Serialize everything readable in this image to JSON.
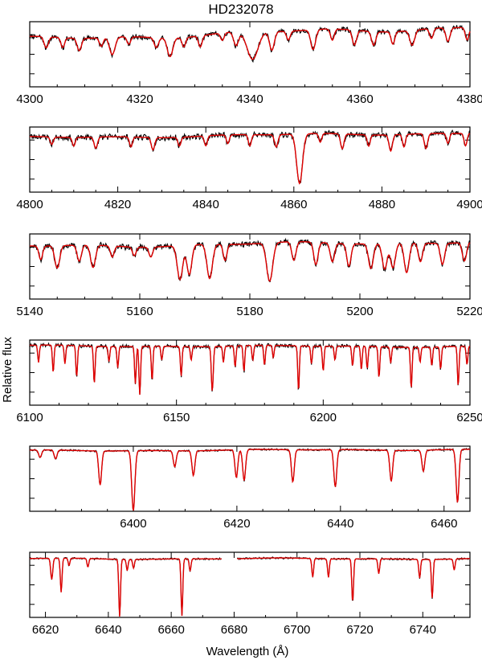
{
  "chart_data": {
    "type": "line",
    "title": "HD232078",
    "xlabel": "Wavelength (Å)",
    "ylabel": "Relative flux",
    "grid": false,
    "series_names_shown": false,
    "colors": {
      "observed": "#000000",
      "model": "#e00000"
    },
    "panels": [
      {
        "xlim": [
          4300,
          4380
        ],
        "ticks": [
          4300,
          4320,
          4340,
          4360,
          4380
        ],
        "noise": 0.035,
        "wiggle": 0.03,
        "trend": [
          0.74,
          0.94
        ],
        "seed": 11,
        "lines": [
          [
            4303,
            0.18,
            0.7
          ],
          [
            4306,
            0.16,
            0.6
          ],
          [
            4309,
            0.2,
            0.7
          ],
          [
            4313,
            0.14,
            0.6
          ],
          [
            4315,
            0.28,
            0.9
          ],
          [
            4318,
            0.12,
            0.6
          ],
          [
            4323,
            0.16,
            0.7
          ],
          [
            4325.5,
            0.3,
            0.9
          ],
          [
            4328,
            0.15,
            0.6
          ],
          [
            4331,
            0.18,
            0.6
          ],
          [
            4335,
            0.12,
            0.6
          ],
          [
            4337.5,
            0.22,
            0.8
          ],
          [
            4340.5,
            0.45,
            1.8
          ],
          [
            4344,
            0.3,
            0.8
          ],
          [
            4347,
            0.14,
            0.6
          ],
          [
            4351.5,
            0.32,
            0.8
          ],
          [
            4355,
            0.18,
            0.6
          ],
          [
            4359,
            0.24,
            0.7
          ],
          [
            4362.5,
            0.22,
            0.7
          ],
          [
            4366,
            0.2,
            0.6
          ],
          [
            4369.5,
            0.24,
            0.8
          ],
          [
            4373,
            0.16,
            0.6
          ],
          [
            4376,
            0.22,
            0.7
          ],
          [
            4379.5,
            0.2,
            0.6
          ]
        ]
      },
      {
        "xlim": [
          4800,
          4900
        ],
        "ticks": [
          4800,
          4820,
          4840,
          4860,
          4880,
          4900
        ],
        "noise": 0.04,
        "wiggle": 0.015,
        "trend": [
          0.85,
          0.93
        ],
        "seed": 23,
        "lines": [
          [
            4805,
            0.12,
            0.6
          ],
          [
            4810,
            0.14,
            0.6
          ],
          [
            4815,
            0.18,
            0.7
          ],
          [
            4823,
            0.16,
            0.6
          ],
          [
            4828,
            0.2,
            0.7
          ],
          [
            4834,
            0.14,
            0.6
          ],
          [
            4840,
            0.16,
            0.6
          ],
          [
            4845,
            0.14,
            0.6
          ],
          [
            4850,
            0.18,
            0.6
          ],
          [
            4856,
            0.2,
            0.7
          ],
          [
            4861.3,
            0.8,
            1.2
          ],
          [
            4866,
            0.14,
            0.6
          ],
          [
            4871,
            0.24,
            0.7
          ],
          [
            4877,
            0.18,
            0.6
          ],
          [
            4882,
            0.26,
            0.7
          ],
          [
            4885,
            0.2,
            0.6
          ],
          [
            4890,
            0.24,
            0.7
          ],
          [
            4895,
            0.16,
            0.6
          ],
          [
            4899,
            0.2,
            0.6
          ]
        ]
      },
      {
        "xlim": [
          5140,
          5220
        ],
        "ticks": [
          5140,
          5160,
          5180,
          5200,
          5220
        ],
        "noise": 0.04,
        "wiggle": 0.02,
        "trend": [
          0.82,
          0.9
        ],
        "seed": 37,
        "lines": [
          [
            5142,
            0.22,
            0.6
          ],
          [
            5145,
            0.36,
            0.8
          ],
          [
            5149,
            0.26,
            0.7
          ],
          [
            5151.5,
            0.36,
            0.8
          ],
          [
            5155,
            0.18,
            0.6
          ],
          [
            5159,
            0.14,
            0.6
          ],
          [
            5162,
            0.16,
            0.6
          ],
          [
            5167.3,
            0.55,
            0.9
          ],
          [
            5169,
            0.48,
            0.8
          ],
          [
            5172.7,
            0.55,
            0.9
          ],
          [
            5175.5,
            0.26,
            0.6
          ],
          [
            5183.6,
            0.62,
            1.0
          ],
          [
            5188,
            0.3,
            0.7
          ],
          [
            5192,
            0.36,
            0.7
          ],
          [
            5195,
            0.3,
            0.7
          ],
          [
            5198,
            0.36,
            0.7
          ],
          [
            5202,
            0.4,
            0.8
          ],
          [
            5204.5,
            0.42,
            0.8
          ],
          [
            5206,
            0.4,
            0.8
          ],
          [
            5208.5,
            0.48,
            0.8
          ],
          [
            5211,
            0.3,
            0.7
          ],
          [
            5215,
            0.34,
            0.7
          ],
          [
            5219,
            0.3,
            0.7
          ]
        ]
      },
      {
        "xlim": [
          6100,
          6250
        ],
        "ticks": [
          6100,
          6150,
          6200,
          6250
        ],
        "noise": 0.025,
        "wiggle": 0.01,
        "trend": [
          0.93,
          0.92
        ],
        "seed": 41,
        "lines": [
          [
            6103,
            0.28,
            0.5
          ],
          [
            6108,
            0.44,
            0.5
          ],
          [
            6112,
            0.3,
            0.5
          ],
          [
            6116,
            0.5,
            0.5
          ],
          [
            6122,
            0.6,
            0.5
          ],
          [
            6127,
            0.24,
            0.5
          ],
          [
            6130,
            0.34,
            0.5
          ],
          [
            6136,
            0.6,
            0.5
          ],
          [
            6137.5,
            0.78,
            0.5
          ],
          [
            6141.7,
            0.55,
            0.5
          ],
          [
            6145,
            0.22,
            0.5
          ],
          [
            6151.6,
            0.48,
            0.5
          ],
          [
            6155,
            0.22,
            0.5
          ],
          [
            6162.2,
            0.72,
            0.6
          ],
          [
            6166,
            0.26,
            0.5
          ],
          [
            6170,
            0.34,
            0.5
          ],
          [
            6173,
            0.42,
            0.5
          ],
          [
            6176,
            0.24,
            0.5
          ],
          [
            6180,
            0.32,
            0.5
          ],
          [
            6183,
            0.2,
            0.5
          ],
          [
            6191.6,
            0.72,
            0.5
          ],
          [
            6196,
            0.28,
            0.5
          ],
          [
            6200,
            0.4,
            0.5
          ],
          [
            6204,
            0.22,
            0.5
          ],
          [
            6210,
            0.32,
            0.5
          ],
          [
            6213,
            0.38,
            0.5
          ],
          [
            6215,
            0.36,
            0.5
          ],
          [
            6219,
            0.5,
            0.5
          ],
          [
            6223,
            0.26,
            0.5
          ],
          [
            6230,
            0.66,
            0.5
          ],
          [
            6233,
            0.24,
            0.5
          ],
          [
            6237,
            0.3,
            0.5
          ],
          [
            6240,
            0.36,
            0.5
          ],
          [
            6246,
            0.64,
            0.5
          ],
          [
            6249,
            0.3,
            0.5
          ]
        ]
      },
      {
        "xlim": [
          6380,
          6465
        ],
        "ticks": [
          6400,
          6420,
          6440,
          6460
        ],
        "noise": 0.012,
        "wiggle": 0.008,
        "trend": [
          0.95,
          0.97
        ],
        "seed": 53,
        "lines": [
          [
            6382,
            0.12,
            0.5
          ],
          [
            6385,
            0.14,
            0.5
          ],
          [
            6393.6,
            0.55,
            0.5
          ],
          [
            6400,
            0.97,
            0.55
          ],
          [
            6408,
            0.26,
            0.5
          ],
          [
            6411.6,
            0.4,
            0.5
          ],
          [
            6419.9,
            0.45,
            0.5
          ],
          [
            6421.4,
            0.5,
            0.5
          ],
          [
            6430.8,
            0.52,
            0.5
          ],
          [
            6439,
            0.6,
            0.5
          ],
          [
            6449.8,
            0.5,
            0.5
          ],
          [
            6456,
            0.34,
            0.5
          ],
          [
            6462.6,
            0.86,
            0.5
          ]
        ]
      },
      {
        "xlim": [
          6615,
          6755
        ],
        "ticks": [
          6620,
          6640,
          6660,
          6680,
          6700,
          6720,
          6740
        ],
        "gap": [
          6676,
          6681
        ],
        "noise": 0.012,
        "wiggle": 0.008,
        "trend": [
          0.92,
          0.92
        ],
        "seed": 61,
        "lines": [
          [
            6622,
            0.34,
            0.6
          ],
          [
            6625,
            0.55,
            0.5
          ],
          [
            6627.5,
            0.12,
            0.5
          ],
          [
            6633.5,
            0.14,
            0.5
          ],
          [
            6643.6,
            0.95,
            0.5
          ],
          [
            6646,
            0.18,
            0.5
          ],
          [
            6648,
            0.14,
            0.5
          ],
          [
            6663.4,
            0.92,
            0.5
          ],
          [
            6666,
            0.2,
            0.5
          ],
          [
            6677,
            0.14,
            0.5
          ],
          [
            6705,
            0.3,
            0.5
          ],
          [
            6710,
            0.3,
            0.5
          ],
          [
            6717.7,
            0.7,
            0.5
          ],
          [
            6726,
            0.24,
            0.5
          ],
          [
            6739,
            0.3,
            0.5
          ],
          [
            6743,
            0.62,
            0.5
          ],
          [
            6750,
            0.18,
            0.5
          ]
        ]
      }
    ]
  }
}
